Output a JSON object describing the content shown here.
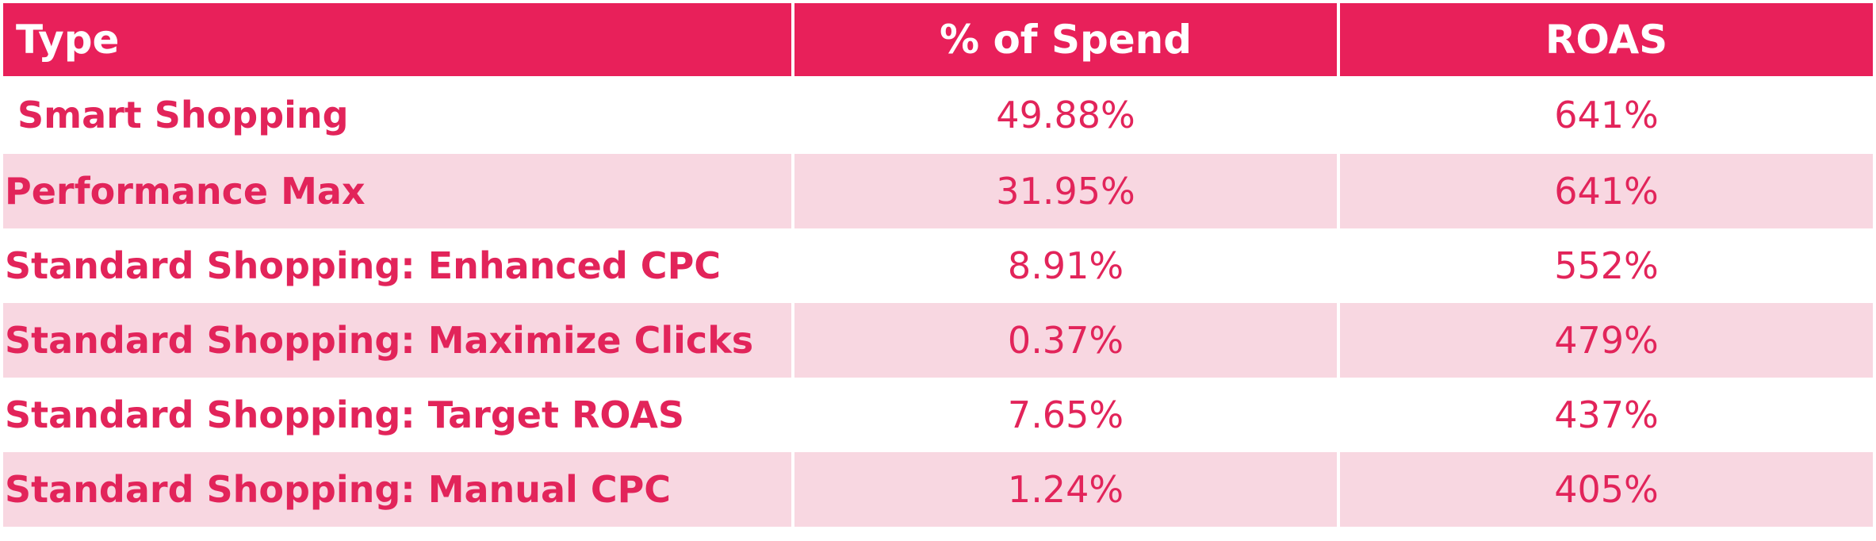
{
  "colors": {
    "header_bg": "#e8205a",
    "header_text": "#ffffff",
    "row_shade": "#f8d7e1",
    "row_plain": "#ffffff",
    "body_text": "#e2245a"
  },
  "chart_data": {
    "type": "table",
    "columns": [
      "Type",
      "% of Spend",
      "ROAS"
    ],
    "rows": [
      {
        "type": " Smart Shopping",
        "spend": "49.88%",
        "roas": "641%"
      },
      {
        "type": "Performance Max",
        "spend": "31.95%",
        "roas": "641%"
      },
      {
        "type": "Standard Shopping: Enhanced CPC",
        "spend": "8.91%",
        "roas": "552%"
      },
      {
        "type": "Standard Shopping: Maximize Clicks",
        "spend": "0.37%",
        "roas": "479%"
      },
      {
        "type": "Standard Shopping: Target ROAS",
        "spend": "7.65%",
        "roas": "437%"
      },
      {
        "type": "Standard Shopping: Manual CPC",
        "spend": "1.24%",
        "roas": "405%"
      }
    ]
  }
}
